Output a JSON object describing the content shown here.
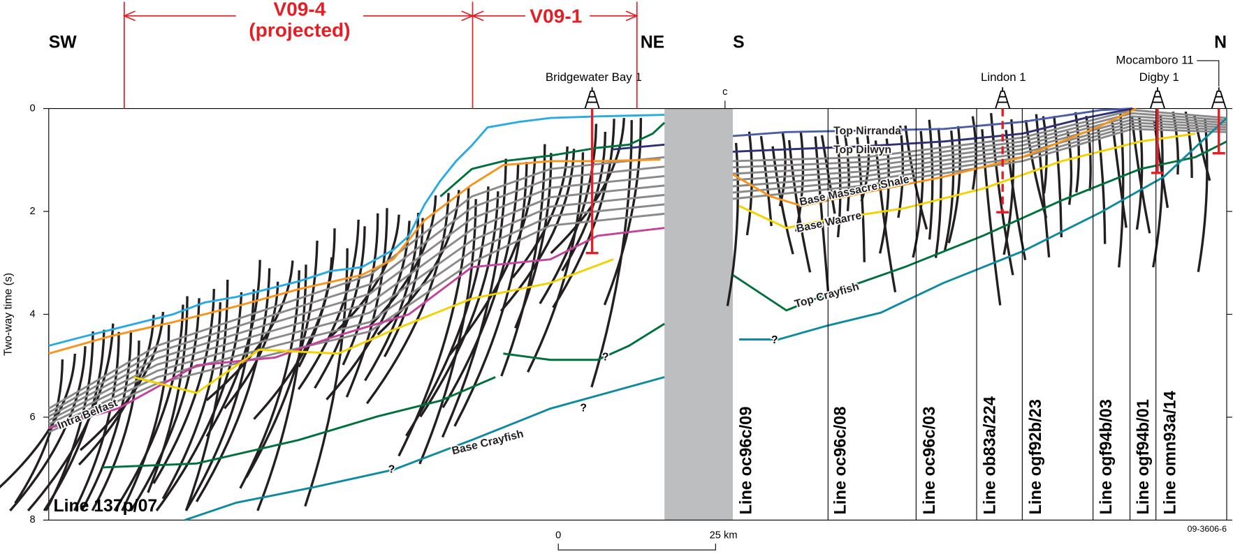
{
  "directions": [
    "SW",
    "NE",
    "S",
    "N"
  ],
  "intervals": {
    "v09_4": "V09-4",
    "projected": "(projected)",
    "v09_1": "V09-1"
  },
  "wells": [
    "Bridgewater Bay 1",
    "Lindon 1",
    "Mocamboro 11",
    "Digby 1"
  ],
  "crossing": "c",
  "horizons": [
    "Top Nirranda",
    "Top Dilwyn",
    "Base Massacre Shale",
    "Base Waarre",
    "Top Crayfish",
    "Intra Belfast",
    "Base Crayfish"
  ],
  "uncertain": [
    "?",
    "?",
    "?",
    "?"
  ],
  "lines": [
    "Line 137p/07",
    "Line oc96c/09",
    "Line oc96c/08",
    "Line oc96c/03",
    "Line ob83a/224",
    "Line ogf92b/23",
    "Line ogf94b/03",
    "Line ogf94b/01",
    "Line omn93a/14"
  ],
  "axis": {
    "label": "Two-way time (s)",
    "ticks": [
      0,
      2,
      4,
      6,
      8
    ]
  },
  "scale": {
    "start": "0",
    "end": "25 km"
  },
  "figure_code": "09-3606-6"
}
